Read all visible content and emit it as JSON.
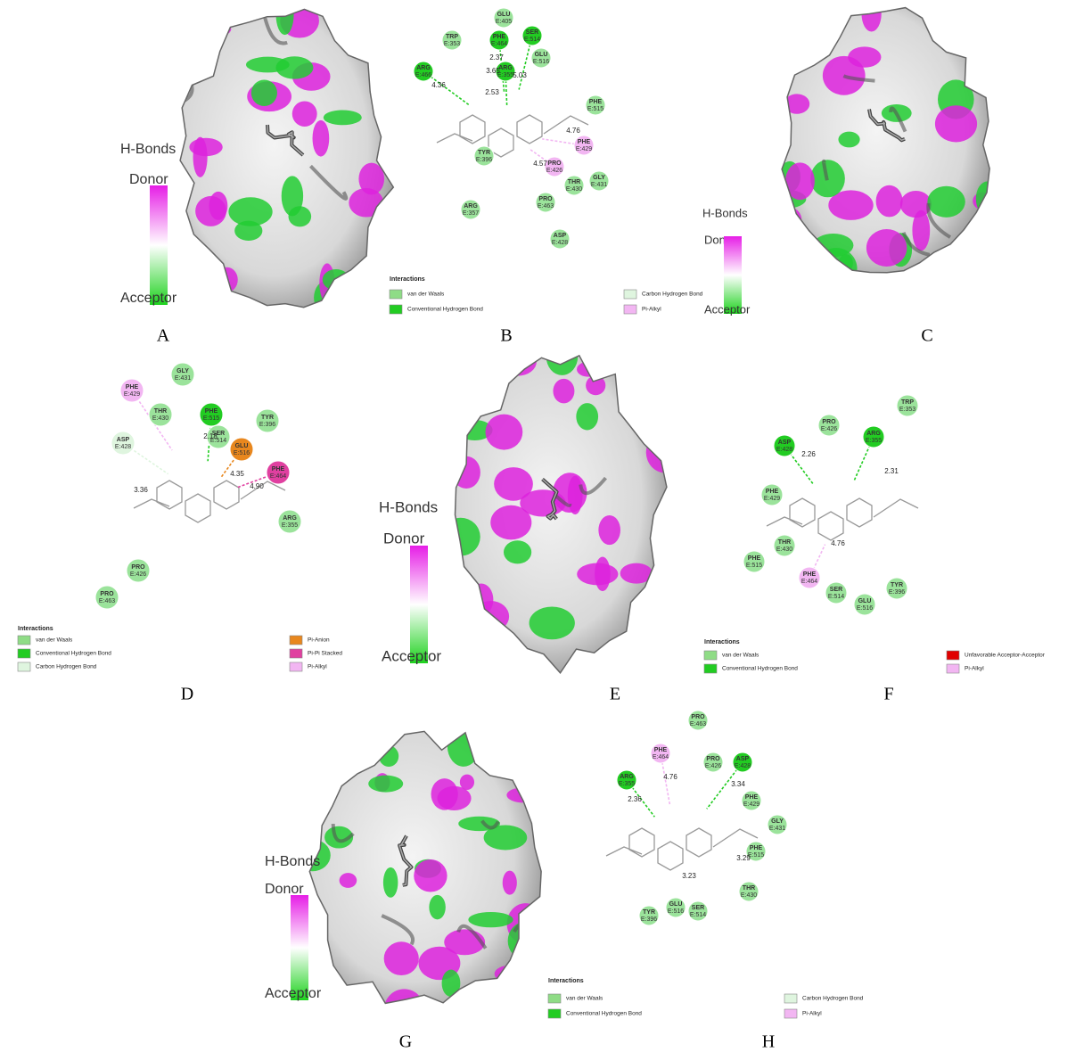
{
  "figure": {
    "surface_panels": [
      {
        "label": "A",
        "hbonds": {
          "title": "H-Bonds",
          "donor": "Donor",
          "acceptor": "Acceptor"
        }
      },
      {
        "label": "C",
        "hbonds": {
          "title": "H-Bonds",
          "donor": "Donor",
          "acceptor": "Acceptor"
        }
      },
      {
        "label": "E",
        "hbonds": {
          "title": "H-Bonds",
          "donor": "Donor",
          "acceptor": "Acceptor"
        }
      },
      {
        "label": "G",
        "hbonds": {
          "title": "H-Bonds",
          "donor": "Donor",
          "acceptor": "Acceptor"
        }
      }
    ],
    "interaction_panels": [
      {
        "label": "B",
        "residues": [
          {
            "name": "TRP",
            "chain": "E:353",
            "color": "#9be39b"
          },
          {
            "name": "GLU",
            "chain": "E:405",
            "color": "#9be39b"
          },
          {
            "name": "PHE",
            "chain": "E:464",
            "color": "#22cc22"
          },
          {
            "name": "SER",
            "chain": "E:514",
            "color": "#22cc22"
          },
          {
            "name": "ARG",
            "chain": "E:466",
            "color": "#22cc22"
          },
          {
            "name": "ARG",
            "chain": "E:355",
            "color": "#22cc22"
          },
          {
            "name": "GLU",
            "chain": "E:516",
            "color": "#9be39b"
          },
          {
            "name": "PHE",
            "chain": "E:515",
            "color": "#9be39b"
          },
          {
            "name": "PHE",
            "chain": "E:429",
            "color": "#f2b6f2"
          },
          {
            "name": "TYR",
            "chain": "E:396",
            "color": "#9be39b"
          },
          {
            "name": "PRO",
            "chain": "E:426",
            "color": "#f2b6f2"
          },
          {
            "name": "THR",
            "chain": "E:430",
            "color": "#9be39b"
          },
          {
            "name": "GLY",
            "chain": "E:431",
            "color": "#9be39b"
          },
          {
            "name": "PRO",
            "chain": "E:463",
            "color": "#9be39b"
          },
          {
            "name": "ARG",
            "chain": "E:357",
            "color": "#9be39b"
          },
          {
            "name": "ASP",
            "chain": "E:428",
            "color": "#9be39b"
          }
        ],
        "distances": [
          "4.36",
          "2.37",
          "3.65",
          "2.53",
          "5.03",
          "4.76",
          "4.57"
        ],
        "legend": {
          "title": "Interactions",
          "items": [
            {
              "name": "van der Waals",
              "color": "#8fdc86"
            },
            {
              "name": "Conventional Hydrogen Bond",
              "color": "#22cc22"
            },
            {
              "name": "Carbon Hydrogen Bond",
              "color": "#dff5df"
            },
            {
              "name": "Pi-Alkyl",
              "color": "#f2b6f2"
            }
          ]
        }
      },
      {
        "label": "D",
        "residues": [
          {
            "name": "PHE",
            "chain": "E:429",
            "color": "#f2b6f2"
          },
          {
            "name": "GLY",
            "chain": "E:431",
            "color": "#9be39b"
          },
          {
            "name": "THR",
            "chain": "E:430",
            "color": "#9be39b"
          },
          {
            "name": "PHE",
            "chain": "E:515",
            "color": "#22cc22"
          },
          {
            "name": "SER",
            "chain": "E:514",
            "color": "#9be39b"
          },
          {
            "name": "TYR",
            "chain": "E:396",
            "color": "#9be39b"
          },
          {
            "name": "ASP",
            "chain": "E:428",
            "color": "#dff5df"
          },
          {
            "name": "GLU",
            "chain": "E:516",
            "color": "#e8871e"
          },
          {
            "name": "PHE",
            "chain": "E:464",
            "color": "#e040a0"
          },
          {
            "name": "ARG",
            "chain": "E:355",
            "color": "#9be39b"
          },
          {
            "name": "PRO",
            "chain": "E:426",
            "color": "#9be39b"
          },
          {
            "name": "PRO",
            "chain": "E:463",
            "color": "#9be39b"
          }
        ],
        "distances": [
          "3.36",
          "2.18",
          "4.35",
          "4.90"
        ],
        "legend": {
          "title": "Interactions",
          "items": [
            {
              "name": "van der Waals",
              "color": "#8fdc86"
            },
            {
              "name": "Conventional Hydrogen Bond",
              "color": "#22cc22"
            },
            {
              "name": "Carbon Hydrogen Bond",
              "color": "#dff5df"
            },
            {
              "name": "Pi-Anion",
              "color": "#e8871e"
            },
            {
              "name": "Pi-Pi Stacked",
              "color": "#e040a0"
            },
            {
              "name": "Pi-Alkyl",
              "color": "#f2b6f2"
            }
          ]
        }
      },
      {
        "label": "F",
        "residues": [
          {
            "name": "TRP",
            "chain": "E:353",
            "color": "#9be39b"
          },
          {
            "name": "PRO",
            "chain": "E:426",
            "color": "#9be39b"
          },
          {
            "name": "ARG",
            "chain": "E:355",
            "color": "#22cc22"
          },
          {
            "name": "ASP",
            "chain": "E:428",
            "color": "#22cc22"
          },
          {
            "name": "PHE",
            "chain": "E:429",
            "color": "#9be39b"
          },
          {
            "name": "THR",
            "chain": "E:430",
            "color": "#9be39b"
          },
          {
            "name": "PHE",
            "chain": "E:515",
            "color": "#9be39b"
          },
          {
            "name": "PHE",
            "chain": "E:464",
            "color": "#f2b6f2"
          },
          {
            "name": "SER",
            "chain": "E:514",
            "color": "#9be39b"
          },
          {
            "name": "GLU",
            "chain": "E:516",
            "color": "#9be39b"
          },
          {
            "name": "TYR",
            "chain": "E:396",
            "color": "#9be39b"
          }
        ],
        "distances": [
          "2.26",
          "2.31",
          "4.76"
        ],
        "legend": {
          "title": "Interactions",
          "items": [
            {
              "name": "van der Waals",
              "color": "#8fdc86"
            },
            {
              "name": "Conventional Hydrogen Bond",
              "color": "#22cc22"
            },
            {
              "name": "Unfavorable Acceptor-Acceptor",
              "color": "#e00000"
            },
            {
              "name": "Pi-Alkyl",
              "color": "#f2b6f2"
            }
          ]
        }
      },
      {
        "label": "H",
        "residues": [
          {
            "name": "PRO",
            "chain": "E:463",
            "color": "#9be39b"
          },
          {
            "name": "PHE",
            "chain": "E:464",
            "color": "#f2b6f2"
          },
          {
            "name": "PRO",
            "chain": "E:426",
            "color": "#9be39b"
          },
          {
            "name": "ASP",
            "chain": "E:428",
            "color": "#22cc22"
          },
          {
            "name": "ARG",
            "chain": "E:355",
            "color": "#22cc22"
          },
          {
            "name": "PHE",
            "chain": "E:429",
            "color": "#9be39b"
          },
          {
            "name": "GLY",
            "chain": "E:431",
            "color": "#9be39b"
          },
          {
            "name": "PHE",
            "chain": "E:515",
            "color": "#9be39b"
          },
          {
            "name": "THR",
            "chain": "E:430",
            "color": "#9be39b"
          },
          {
            "name": "TYR",
            "chain": "E:396",
            "color": "#9be39b"
          },
          {
            "name": "GLU",
            "chain": "E:516",
            "color": "#9be39b"
          },
          {
            "name": "SER",
            "chain": "E:514",
            "color": "#9be39b"
          }
        ],
        "distances": [
          "2.36",
          "4.76",
          "3.34",
          "3.29",
          "3.23"
        ],
        "legend": {
          "title": "Interactions",
          "items": [
            {
              "name": "van der Waals",
              "color": "#8fdc86"
            },
            {
              "name": "Conventional Hydrogen Bond",
              "color": "#22cc22"
            },
            {
              "name": "Carbon Hydrogen Bond",
              "color": "#dff5df"
            },
            {
              "name": "Pi-Alkyl",
              "color": "#f2b6f2"
            }
          ]
        }
      }
    ]
  }
}
